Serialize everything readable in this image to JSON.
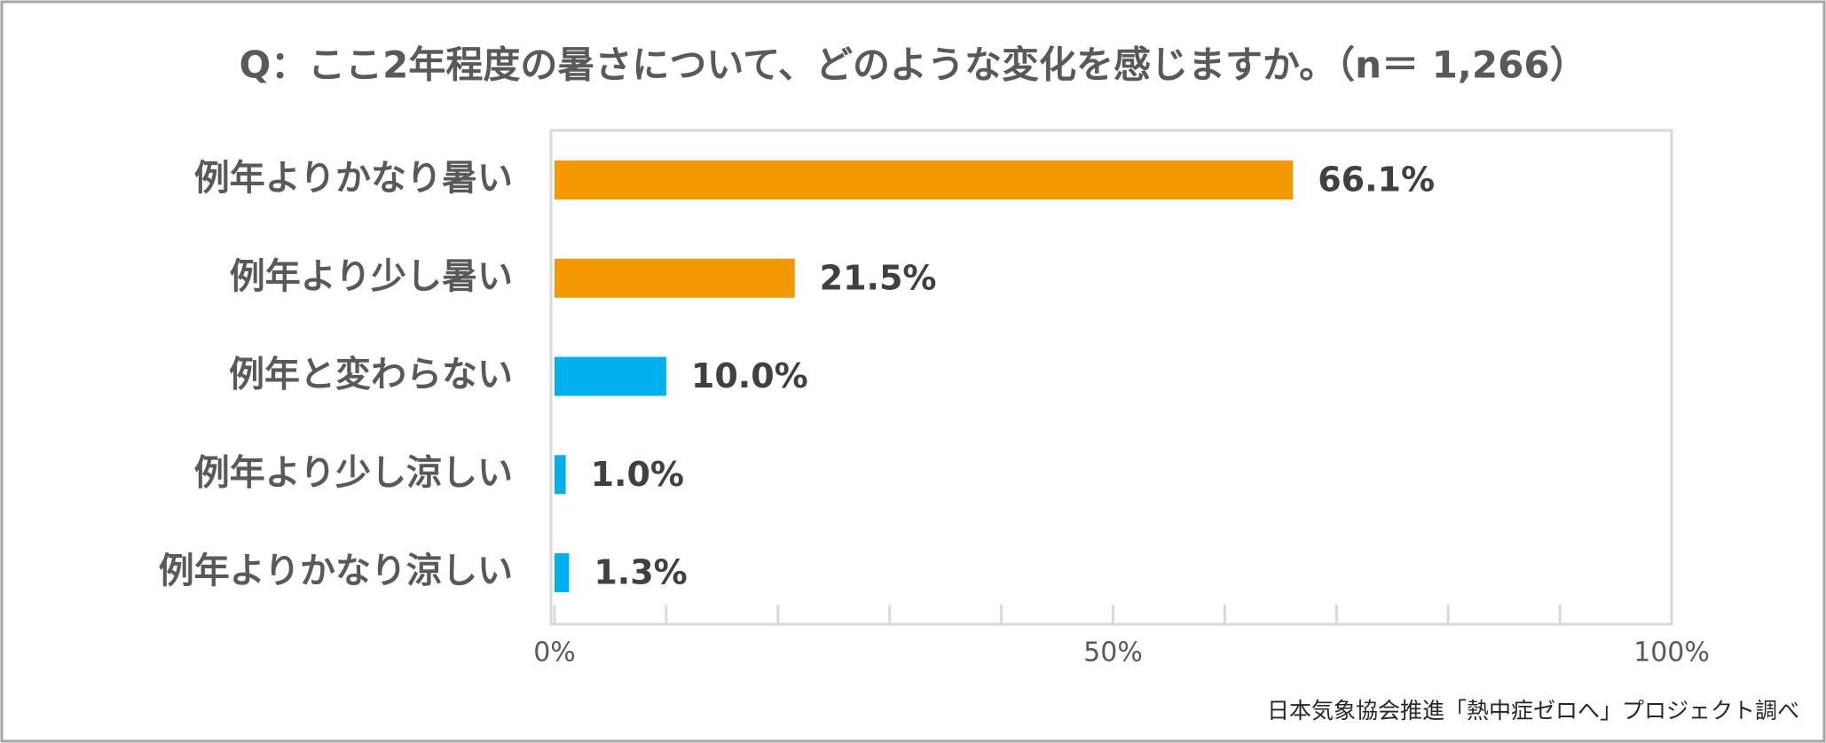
{
  "chart_data": {
    "type": "bar",
    "orientation": "horizontal",
    "title": "Q：ここ2年程度の暑さについて、どのような変化を感じますか。（n＝ 1,266）",
    "categories": [
      "例年よりかなり暑い",
      "例年より少し暑い",
      "例年と変わらない",
      "例年より少し涼しい",
      "例年よりかなり涼しい"
    ],
    "values": [
      66.1,
      21.5,
      10.0,
      1.0,
      1.3
    ],
    "value_labels": [
      "66.1%",
      "21.5%",
      "10.0%",
      "1.0%",
      "1.3%"
    ],
    "colors": [
      "#f39800",
      "#f39800",
      "#00b0ec",
      "#00b0ec",
      "#00b0ec"
    ],
    "xlim": [
      0,
      100
    ],
    "xticks": [
      {
        "value": 0,
        "label": "0%"
      },
      {
        "value": 50,
        "label": "50%"
      },
      {
        "value": 100,
        "label": "100%"
      }
    ],
    "xminorticks": [
      10,
      20,
      30,
      40,
      60,
      70,
      80,
      90
    ],
    "source": "日本気象協会推進「熱中症ゼロへ」プロジェクト調べ"
  }
}
